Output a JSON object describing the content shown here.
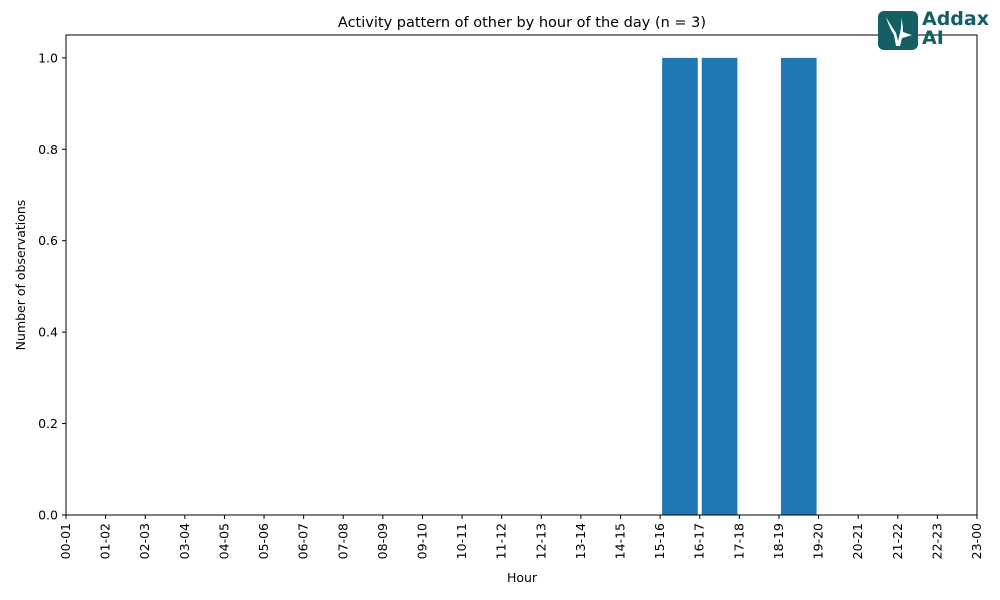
{
  "logo": {
    "line1": "Addax",
    "line2": "AI",
    "color": "#145f63",
    "icon": "antelope-icon"
  },
  "chart_data": {
    "type": "bar",
    "title": "Activity pattern of other by hour of the day (n = 3)",
    "xlabel": "Hour",
    "ylabel": "Number of observations",
    "categories": [
      "00-01",
      "01-02",
      "02-03",
      "03-04",
      "04-05",
      "05-06",
      "06-07",
      "07-08",
      "08-09",
      "09-10",
      "10-11",
      "11-12",
      "12-13",
      "13-14",
      "14-15",
      "15-16",
      "16-17",
      "17-18",
      "18-19",
      "19-20",
      "20-21",
      "21-22",
      "22-23",
      "23-00"
    ],
    "values": [
      0,
      0,
      0,
      0,
      0,
      0,
      0,
      0,
      0,
      0,
      0,
      0,
      0,
      0,
      0,
      1,
      1,
      0,
      1,
      0,
      0,
      0,
      0,
      0
    ],
    "ylim": [
      0,
      1.05
    ],
    "yticks": [
      "0.0",
      "0.2",
      "0.4",
      "0.6",
      "0.8",
      "1.0"
    ],
    "bar_color": "#1f77b4",
    "grid": false,
    "legend": false
  }
}
